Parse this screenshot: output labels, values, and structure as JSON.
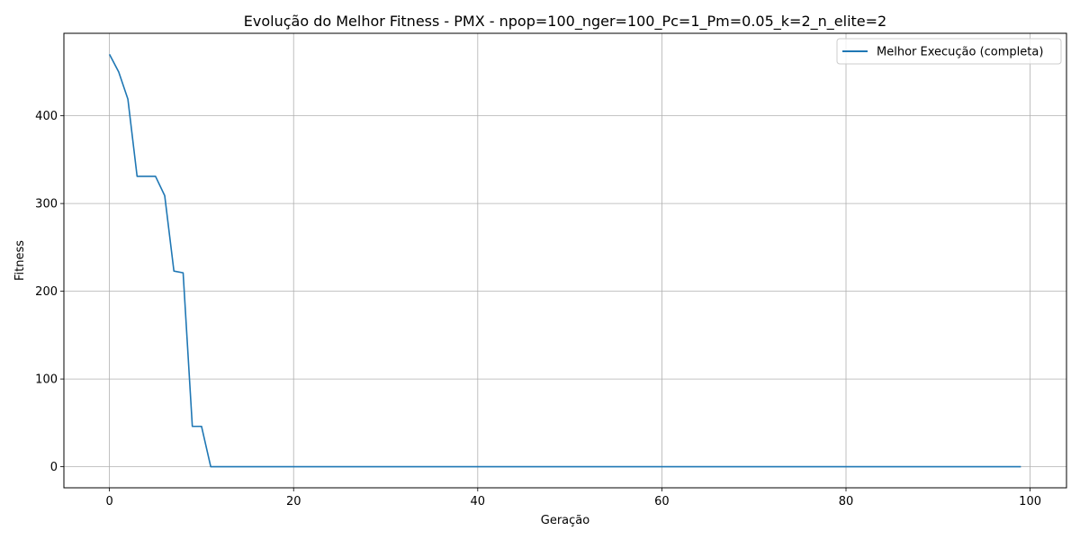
{
  "chart_data": {
    "type": "line",
    "title": "Evolução do Melhor Fitness - PMX - npop=100_nger=100_Pc=1_Pm=0.05_k=2_n_elite=2",
    "xlabel": "Geração",
    "ylabel": "Fitness",
    "xlim": [
      -4.95,
      103.95
    ],
    "ylim": [
      -24,
      494
    ],
    "xticks": [
      0,
      20,
      40,
      60,
      80,
      100
    ],
    "yticks": [
      0,
      100,
      200,
      300,
      400
    ],
    "grid": true,
    "legend_position": "top-right",
    "series": [
      {
        "name": "Melhor Execução (completa)",
        "color": "#1f77b4",
        "x_start": 0,
        "x_end": 99,
        "values": [
          470,
          450,
          419,
          331,
          331,
          331,
          309,
          223,
          221,
          46,
          46,
          0
        ]
      }
    ]
  }
}
